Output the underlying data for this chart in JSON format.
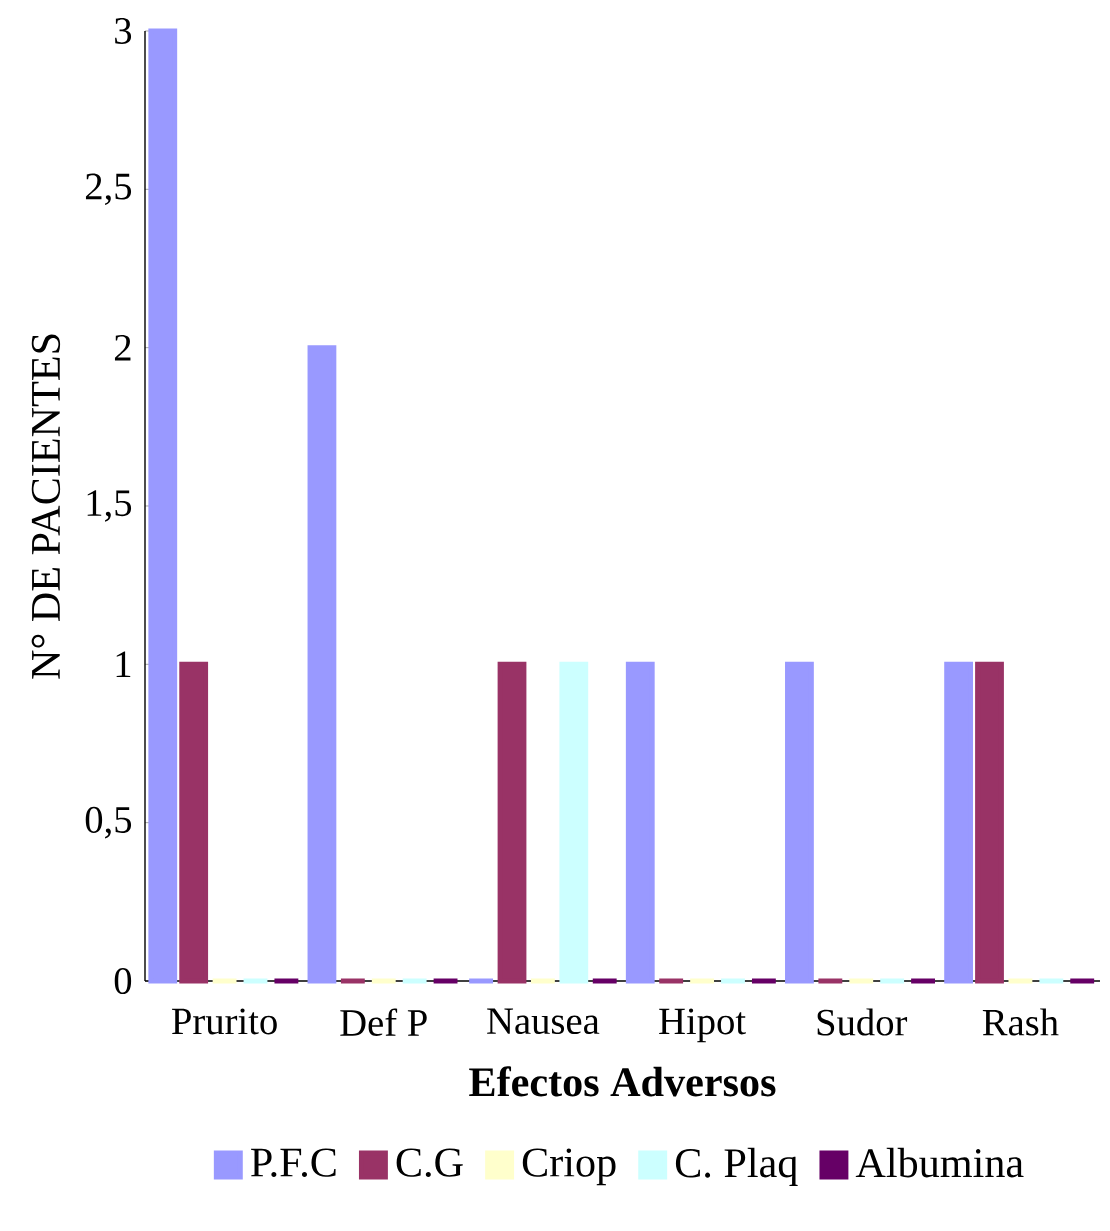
{
  "chart_data": {
    "type": "bar",
    "xlabel": "**Efectos Adversos**",
    "ylabel": "N° DE PACIENTES",
    "categories": [
      "Prurito",
      "Def P",
      "Nausea",
      "Hipot",
      "Sudor",
      "Rash"
    ],
    "series": [
      {
        "name": "P.F.C",
        "color": "#9999ff",
        "values": [
          3,
          2,
          0,
          1,
          1,
          1
        ]
      },
      {
        "name": "C.G",
        "color": "#993366",
        "values": [
          1,
          0,
          1,
          0,
          0,
          1
        ]
      },
      {
        "name": "Criop",
        "color": "#ffffcc",
        "values": [
          0,
          0,
          0,
          0,
          0,
          0
        ]
      },
      {
        "name": "C. Plaq",
        "color": "#ccffff",
        "values": [
          0,
          0,
          1,
          0,
          0,
          0
        ]
      },
      {
        "name": "Albumina",
        "color": "#660066",
        "values": [
          0,
          0,
          0,
          0,
          0,
          0
        ]
      }
    ],
    "ylim": [
      0,
      3
    ],
    "yticks": [
      0,
      {
        "value": 0.5,
        "label": "0,5"
      },
      1,
      {
        "value": 1.5,
        "label": "1,5"
      },
      2,
      {
        "value": 2.5,
        "label": "2,5"
      },
      3
    ],
    "grid": false,
    "legend": "bottom"
  }
}
